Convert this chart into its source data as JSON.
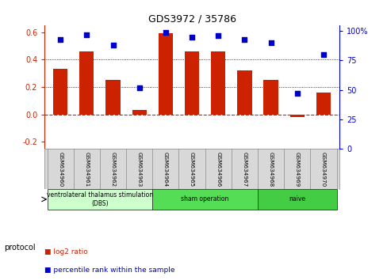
{
  "title": "GDS3972 / 35786",
  "samples": [
    "GSM634960",
    "GSM634961",
    "GSM634962",
    "GSM634963",
    "GSM634964",
    "GSM634965",
    "GSM634966",
    "GSM634967",
    "GSM634968",
    "GSM634969",
    "GSM634970"
  ],
  "log2_ratio": [
    0.33,
    0.46,
    0.25,
    0.03,
    0.59,
    0.46,
    0.46,
    0.32,
    0.25,
    -0.02,
    0.16
  ],
  "percentile_rank": [
    93,
    97,
    88,
    52,
    99,
    95,
    96,
    93,
    90,
    47,
    80
  ],
  "bar_color": "#cc2200",
  "dot_color": "#0000cc",
  "ylim_left": [
    -0.25,
    0.65
  ],
  "ylim_right": [
    0,
    105
  ],
  "yticks_left": [
    -0.2,
    0.0,
    0.2,
    0.4,
    0.6
  ],
  "yticks_right": [
    0,
    25,
    50,
    75,
    100
  ],
  "hlines": [
    0.2,
    0.4
  ],
  "zero_line_color": "#cc2200",
  "groups": [
    {
      "label": "ventrolateral thalamus stimulation\n(DBS)",
      "start": 0,
      "end": 3,
      "color": "#ccffcc"
    },
    {
      "label": "sham operation",
      "start": 4,
      "end": 7,
      "color": "#55dd55"
    },
    {
      "label": "naive",
      "start": 8,
      "end": 10,
      "color": "#44cc44"
    }
  ],
  "protocol_label": "protocol",
  "legend_items": [
    {
      "color": "#cc2200",
      "label": "log2 ratio"
    },
    {
      "color": "#0000cc",
      "label": "percentile rank within the sample"
    }
  ],
  "bg_color": "#ffffff"
}
